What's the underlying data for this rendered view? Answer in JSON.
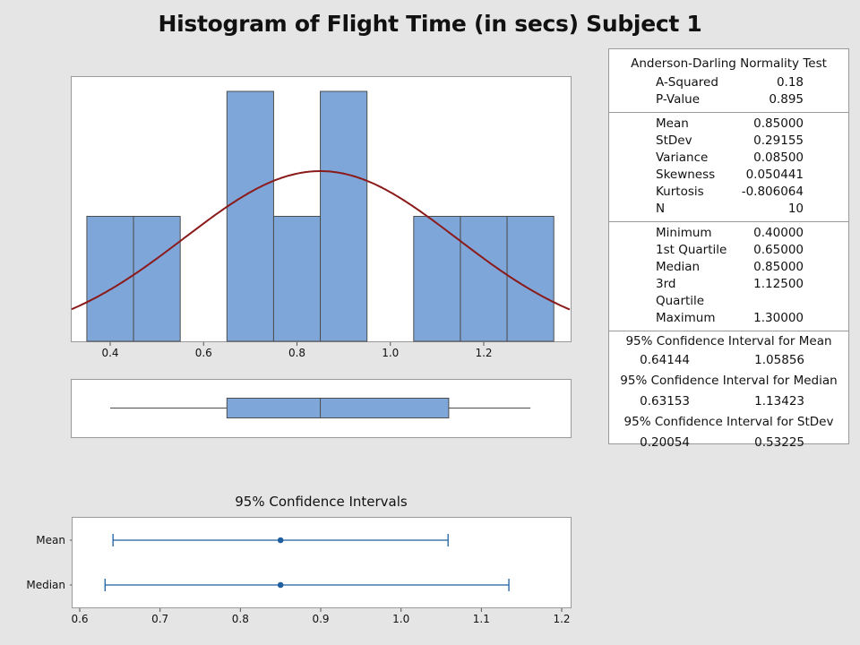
{
  "title": "Histogram of Flight Time (in secs) Subject 1",
  "colors": {
    "bar_fill": "#7ea6d8",
    "bar_edge": "#4d4d4d",
    "curve": "#8b1a1a",
    "ci_line": "#1f5fa0",
    "panel_border": "#9a9a9a",
    "background": "#e5e5e5"
  },
  "stats": {
    "normality": {
      "heading": "Anderson-Darling Normality Test",
      "rows": [
        {
          "label": "A-Squared",
          "value": "0.18"
        },
        {
          "label": "P-Value",
          "value": "0.895"
        }
      ]
    },
    "moments": {
      "rows": [
        {
          "label": "Mean",
          "value": "0.85000"
        },
        {
          "label": "StDev",
          "value": "0.29155"
        },
        {
          "label": "Variance",
          "value": "0.08500"
        },
        {
          "label": "Skewness",
          "value": "0.050441"
        },
        {
          "label": "Kurtosis",
          "value": "-0.806064"
        },
        {
          "label": "N",
          "value": "10"
        }
      ]
    },
    "quartiles": {
      "rows": [
        {
          "label": "Minimum",
          "value": "0.40000"
        },
        {
          "label": "1st Quartile",
          "value": "0.65000"
        },
        {
          "label": "Median",
          "value": "0.85000"
        },
        {
          "label": "3rd Quartile",
          "value": "1.12500"
        },
        {
          "label": "Maximum",
          "value": "1.30000"
        }
      ]
    },
    "intervals": [
      {
        "heading": "95% Confidence Interval for Mean",
        "lower": "0.64144",
        "upper": "1.05856"
      },
      {
        "heading": "95% Confidence Interval for Median",
        "lower": "0.63153",
        "upper": "1.13423"
      },
      {
        "heading": "95% Confidence Interval for StDev",
        "lower": "0.20054",
        "upper": "0.53225"
      }
    ]
  },
  "ci_chart": {
    "heading": "95% Confidence Intervals",
    "rows": [
      {
        "label": "Mean",
        "center": 0.85,
        "lower": 0.64144,
        "upper": 1.05856
      },
      {
        "label": "Median",
        "center": 0.85,
        "lower": 0.63153,
        "upper": 1.13423
      }
    ],
    "ticks": [
      "0.6",
      "0.7",
      "0.8",
      "0.9",
      "1.0",
      "1.1",
      "1.2"
    ]
  },
  "chart_data": [
    {
      "type": "bar",
      "title": "Histogram of Flight Time (in secs) Subject 1",
      "xlabel": "",
      "ylabel": "",
      "bin_width": 0.1,
      "categories": [
        "0.4",
        "0.5",
        "0.6",
        "0.7",
        "0.8",
        "0.9",
        "1.0",
        "1.1",
        "1.2",
        "1.3"
      ],
      "values": [
        1,
        1,
        0,
        2,
        1,
        2,
        0,
        1,
        1,
        1
      ],
      "x_ticks": [
        "0.4",
        "0.6",
        "0.8",
        "1.0",
        "1.2"
      ],
      "xlim": [
        0.32,
        1.38
      ],
      "overlay": {
        "type": "normal_curve",
        "mean": 0.85,
        "stdev": 0.29155
      },
      "grid": false
    },
    {
      "type": "boxplot",
      "min": 0.4,
      "q1": 0.65,
      "median": 0.85,
      "q3": 1.125,
      "max": 1.3
    },
    {
      "type": "interval",
      "title": "95% Confidence Intervals",
      "categories": [
        "Mean",
        "Median"
      ],
      "series": [
        {
          "name": "Mean",
          "center": 0.85,
          "lower": 0.64144,
          "upper": 1.05856
        },
        {
          "name": "Median",
          "center": 0.85,
          "lower": 0.63153,
          "upper": 1.13423
        }
      ],
      "x_ticks": [
        "0.6",
        "0.7",
        "0.8",
        "0.9",
        "1.0",
        "1.1",
        "1.2"
      ],
      "xlim": [
        0.59,
        1.21
      ]
    }
  ]
}
